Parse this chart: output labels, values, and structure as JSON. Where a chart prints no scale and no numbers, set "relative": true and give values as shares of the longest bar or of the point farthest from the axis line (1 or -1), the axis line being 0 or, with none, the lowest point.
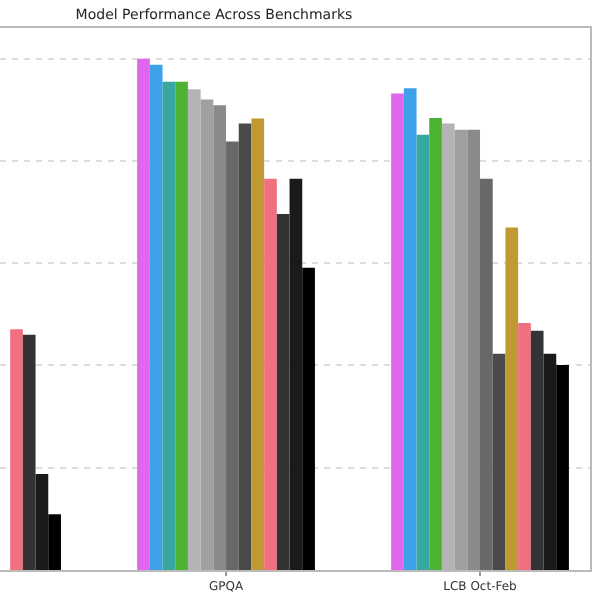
{
  "chart_data": {
    "type": "bar",
    "title": "Model Performance Across Benchmarks",
    "relative": true,
    "grid": "y",
    "categories": [
      null,
      "GPQA",
      "LCB Oct-Feb"
    ],
    "series": [
      {
        "color": "#e066ee",
        "values": [
          null,
          1,
          0.932
        ]
      },
      {
        "color": "#3ea0e8",
        "values": [
          null,
          0.988,
          0.942
        ]
      },
      {
        "color": "#36a8a0",
        "values": [
          null,
          0.955,
          0.851
        ]
      },
      {
        "color": "#4cb234",
        "values": [
          null,
          0.955,
          0.884
        ]
      },
      {
        "color": "#b4b4b4",
        "values": [
          null,
          0.94,
          0.873
        ]
      },
      {
        "color": "#a0a0a0",
        "values": [
          null,
          0.92,
          0.861
        ]
      },
      {
        "color": "#8a8a8a",
        "values": [
          null,
          0.909,
          0.861
        ]
      },
      {
        "color": "#686868",
        "values": [
          null,
          0.838,
          0.765
        ]
      },
      {
        "color": "#4a4a4a",
        "values": [
          null,
          0.873,
          0.423
        ]
      },
      {
        "color": "#c09a30",
        "values": [
          null,
          0.883,
          0.67
        ]
      },
      {
        "color": "#f07080",
        "values": [
          0.471,
          0.765,
          0.483
        ]
      },
      {
        "color": "#333333",
        "values": [
          0.46,
          0.696,
          0.468
        ]
      },
      {
        "color": "#1a1a1a",
        "values": [
          0.188,
          0.765,
          0.423
        ]
      },
      {
        "color": "#000000",
        "values": [
          0.109,
          0.591,
          0.401
        ]
      }
    ]
  }
}
